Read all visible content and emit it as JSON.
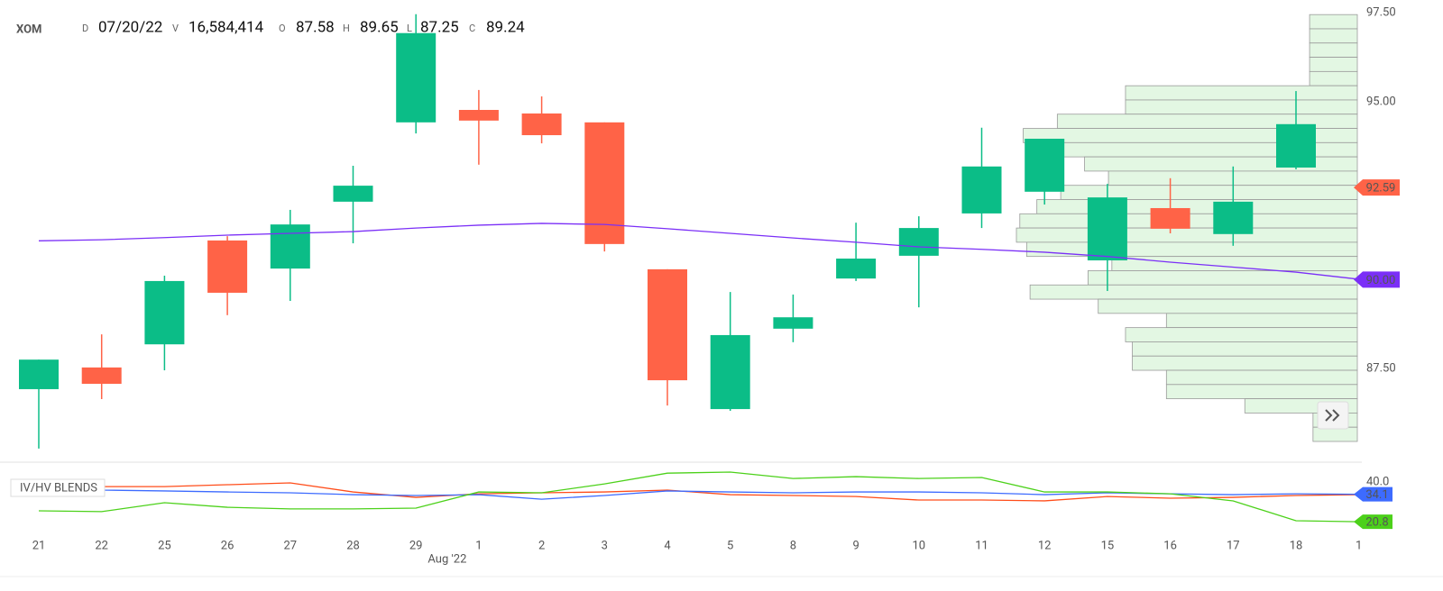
{
  "chart_data": [
    {
      "type": "candlestick",
      "symbol": "XOM",
      "header": [
        {
          "key": "D",
          "value": "07/20/22"
        },
        {
          "key": "V",
          "value": "16,584,414"
        },
        {
          "key": "O",
          "value": "87.58"
        },
        {
          "key": "H",
          "value": "89.65"
        },
        {
          "key": "L",
          "value": "87.25"
        },
        {
          "key": "C",
          "value": "89.24"
        }
      ],
      "categories": [
        "21",
        "22",
        "25",
        "26",
        "27",
        "28",
        "29",
        "1",
        "2",
        "3",
        "4",
        "5",
        "8",
        "9",
        "10",
        "11",
        "12",
        "15",
        "16",
        "17",
        "18",
        "1"
      ],
      "period_label": "Aug '22",
      "open": [
        86.92,
        87.53,
        88.18,
        91.1,
        90.31,
        92.19,
        94.42,
        94.77,
        94.67,
        94.42,
        90.29,
        86.36,
        88.62,
        90.03,
        90.67,
        91.86,
        92.47,
        90.54,
        92.01,
        91.28,
        93.15,
        null
      ],
      "high": [
        87.75,
        88.46,
        90.11,
        91.22,
        91.96,
        93.2,
        97.46,
        95.33,
        95.15,
        94.42,
        90.29,
        89.65,
        89.58,
        91.6,
        91.78,
        94.27,
        93.96,
        92.69,
        92.85,
        93.18,
        95.3,
        null
      ],
      "low": [
        85.25,
        86.64,
        87.45,
        89.0,
        89.4,
        91.02,
        94.11,
        93.23,
        93.83,
        90.79,
        86.46,
        86.31,
        88.24,
        89.96,
        89.22,
        91.45,
        92.11,
        89.68,
        91.3,
        90.95,
        93.1,
        null
      ],
      "close": [
        87.75,
        87.07,
        89.96,
        89.63,
        91.55,
        92.64,
        96.93,
        94.47,
        94.06,
        91.0,
        87.17,
        88.44,
        88.94,
        90.59,
        91.45,
        93.18,
        93.96,
        92.31,
        91.43,
        92.19,
        94.37,
        null
      ],
      "up_color": "#0bbd87",
      "down_color": "#ff6347",
      "moving_average": {
        "color": "#7b2ff7",
        "values": [
          91.09,
          91.12,
          91.18,
          91.25,
          91.3,
          91.35,
          91.45,
          91.53,
          91.58,
          91.55,
          91.43,
          91.3,
          91.17,
          91.05,
          90.92,
          90.85,
          90.77,
          90.65,
          90.49,
          90.35,
          90.21,
          90.01
        ]
      },
      "volume_profile": {
        "color": "#e3f7e3",
        "edge_color": "#9a9a9a",
        "bins": [
          97.45,
          97.05,
          96.65,
          96.25,
          95.85,
          95.45,
          95.05,
          94.65,
          94.25,
          93.85,
          93.45,
          93.05,
          92.65,
          92.25,
          91.85,
          91.45,
          91.05,
          90.65,
          90.25,
          89.85,
          89.45,
          89.05,
          88.65,
          88.25,
          87.85,
          87.45,
          87.05,
          86.65,
          86.25,
          85.85,
          85.45
        ],
        "values": [
          14,
          14,
          14,
          14,
          14,
          68,
          68,
          88,
          98,
          88,
          80,
          73,
          87,
          94,
          99,
          100,
          97,
          72,
          79,
          96,
          76,
          56,
          68,
          66,
          66,
          56,
          56,
          33,
          13,
          13
        ]
      },
      "ylim": [
        85.07,
        97.86
      ],
      "yticks": [
        {
          "value": 97.5,
          "label": "97.50"
        },
        {
          "value": 95,
          "label": "95.00"
        },
        {
          "value": 87.5,
          "label": "87.50"
        }
      ],
      "price_tags": [
        {
          "value": 92.59,
          "color": "#ff6347"
        },
        {
          "value": 90,
          "label": "90.00",
          "color": "#7b2ff7"
        }
      ]
    },
    {
      "type": "line",
      "title": "IV/HV BLENDS",
      "series": [
        {
          "color": "#ff4d1a",
          "values": [
            37.8,
            37.8,
            37.8,
            38.7,
            39.6,
            35.2,
            32.6,
            34.3,
            34.8,
            35.2,
            36.1,
            33.9,
            33.5,
            33.0,
            31.3,
            31.3,
            30.9,
            33.0,
            32.2,
            32.6,
            33.5,
            33.9
          ]
        },
        {
          "color": "#3d6bff",
          "values": [
            37.4,
            36.1,
            35.7,
            35.2,
            34.8,
            33.9,
            33.5,
            33.9,
            31.7,
            33.5,
            35.7,
            35.2,
            34.8,
            35.2,
            35.2,
            34.8,
            33.9,
            34.8,
            34.3,
            33.9,
            34.3,
            34.1
          ]
        },
        {
          "color": "#4cd11a",
          "values": [
            26.1,
            25.7,
            30.0,
            27.8,
            27.0,
            27.0,
            27.4,
            35.2,
            34.8,
            39.1,
            44.3,
            44.8,
            41.7,
            42.6,
            41.7,
            42.2,
            35.2,
            35.2,
            34.3,
            30.9,
            21.3,
            20.8
          ]
        }
      ],
      "ylim": [
        13.9,
        49.6
      ],
      "yticks": [
        {
          "value": 40,
          "label": "40.0"
        }
      ]
    }
  ]
}
